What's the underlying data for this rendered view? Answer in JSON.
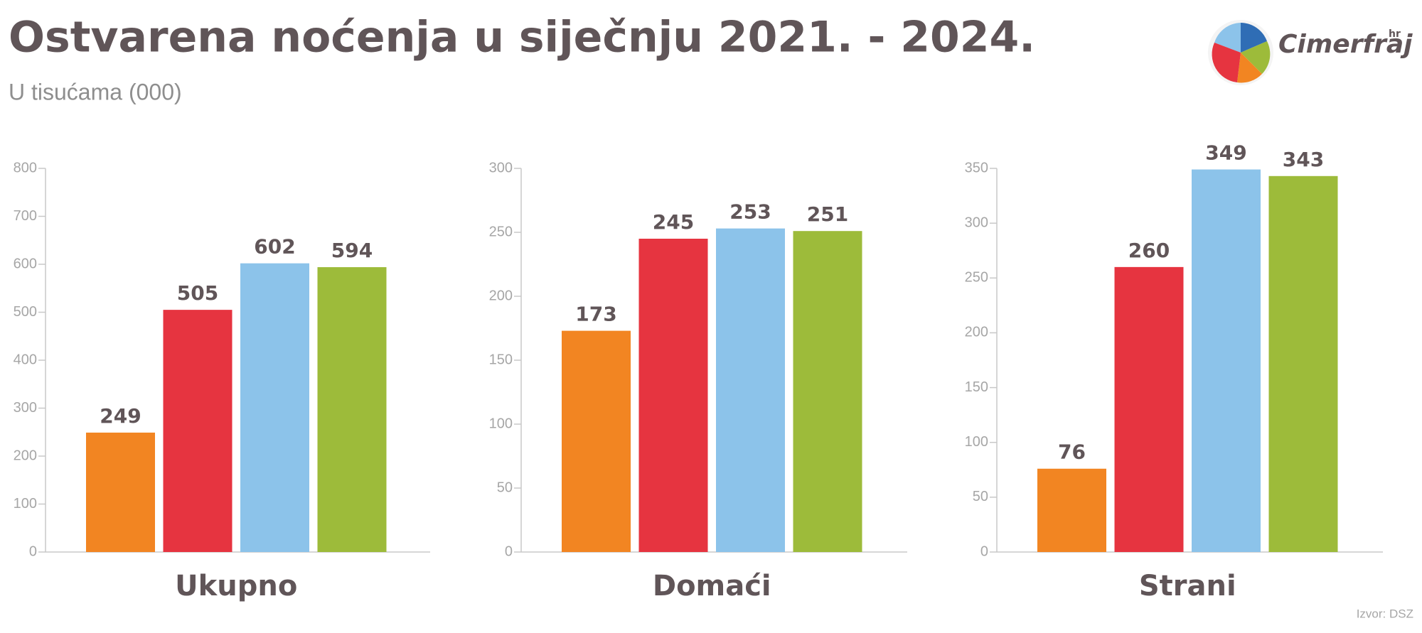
{
  "title": "Ostvarena noćenja u siječnju 2021. - 2024.",
  "subtitle": "U tisućama (000)",
  "source": "Izvor: DSZ",
  "logo": {
    "name": "Cimerfraj",
    "suffix": "hr"
  },
  "chart_data": [
    {
      "type": "bar",
      "xlabel": "Ukupno",
      "categories": [
        null,
        null,
        null,
        null
      ],
      "values": [
        249,
        505,
        602,
        594
      ],
      "colors": [
        "#f28522",
        "#e63440",
        "#8cc3ea",
        "#9dbb3a"
      ],
      "ylim": [
        0,
        800
      ],
      "yticks": [
        0,
        100,
        200,
        300,
        400,
        500,
        600,
        700,
        800
      ]
    },
    {
      "type": "bar",
      "xlabel": "Domaći",
      "categories": [
        null,
        null,
        null,
        null
      ],
      "values": [
        173,
        245,
        253,
        251
      ],
      "colors": [
        "#f28522",
        "#e63440",
        "#8cc3ea",
        "#9dbb3a"
      ],
      "ylim": [
        0,
        300
      ],
      "yticks": [
        0,
        50,
        100,
        150,
        200,
        250,
        300
      ]
    },
    {
      "type": "bar",
      "xlabel": "Strani",
      "categories": [
        null,
        null,
        null,
        null
      ],
      "values": [
        76,
        260,
        349,
        343
      ],
      "colors": [
        "#f28522",
        "#e63440",
        "#8cc3ea",
        "#9dbb3a"
      ],
      "ylim": [
        0,
        350
      ],
      "yticks": [
        0,
        50,
        100,
        150,
        200,
        250,
        300,
        350
      ]
    }
  ]
}
